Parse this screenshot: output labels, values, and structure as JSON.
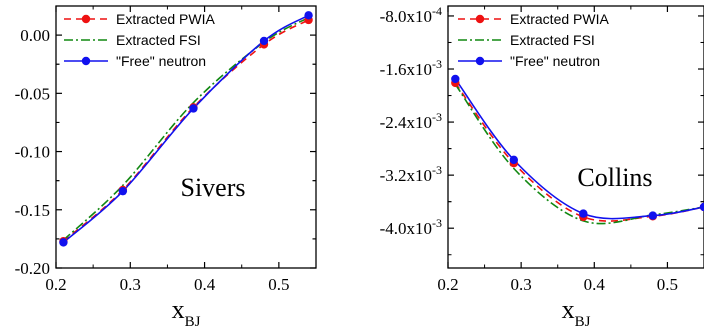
{
  "chart_data": [
    {
      "type": "line",
      "annotation": "Sivers",
      "xlabel_main": "x",
      "xlabel_sub": "BJ",
      "xlim": [
        0.2,
        0.55
      ],
      "ylim": [
        -0.2,
        0.025
      ],
      "xticks": [
        {
          "value": 0.2,
          "label": "0.2"
        },
        {
          "value": 0.3,
          "label": "0.3"
        },
        {
          "value": 0.4,
          "label": "0.4"
        },
        {
          "value": 0.5,
          "label": "0.5"
        }
      ],
      "yticks": [
        {
          "value": 0.0,
          "label": "0.00"
        },
        {
          "value": -0.05,
          "label": "-0.05"
        },
        {
          "value": -0.1,
          "label": "-0.10"
        },
        {
          "value": -0.15,
          "label": "-0.15"
        },
        {
          "value": -0.2,
          "label": "-0.20"
        }
      ],
      "grid": false,
      "legend_position": "top-left",
      "series": [
        {
          "name": "Extracted PWIA",
          "style": "dashed",
          "color": "#ee1111",
          "marker": "circle",
          "x": [
            0.21,
            0.29,
            0.385,
            0.48,
            0.54
          ],
          "y": [
            -0.177,
            -0.133,
            -0.062,
            -0.008,
            0.013
          ]
        },
        {
          "name": "Extracted FSI",
          "style": "dashdot",
          "color": "#118811",
          "marker": "none",
          "x": [
            0.21,
            0.29,
            0.385,
            0.48,
            0.54
          ],
          "y": [
            -0.176,
            -0.129,
            -0.058,
            -0.006,
            0.015
          ]
        },
        {
          "name": "\"Free\" neutron",
          "style": "solid",
          "color": "#1111ee",
          "marker": "circle",
          "x": [
            0.21,
            0.29,
            0.385,
            0.48,
            0.54
          ],
          "y": [
            -0.178,
            -0.134,
            -0.063,
            -0.005,
            0.017
          ]
        }
      ]
    },
    {
      "type": "line",
      "annotation": "Collins",
      "xlabel_main": "x",
      "xlabel_sub": "BJ",
      "xlim": [
        0.2,
        0.55
      ],
      "ylim": [
        -0.0046,
        -0.00065
      ],
      "xticks": [
        {
          "value": 0.2,
          "label": "0.2"
        },
        {
          "value": 0.3,
          "label": "0.3"
        },
        {
          "value": 0.4,
          "label": "0.4"
        },
        {
          "value": 0.5,
          "label": "0.5"
        }
      ],
      "yticks": [
        {
          "value": -0.0008,
          "mant": "-8.0x10",
          "exp": "-4"
        },
        {
          "value": -0.0016,
          "mant": "-1.6x10",
          "exp": "-3"
        },
        {
          "value": -0.0024,
          "mant": "-2.4x10",
          "exp": "-3"
        },
        {
          "value": -0.0032,
          "mant": "-3.2x10",
          "exp": "-3"
        },
        {
          "value": -0.004,
          "mant": "-4.0x10",
          "exp": "-3"
        }
      ],
      "grid": false,
      "legend_position": "top-left",
      "series": [
        {
          "name": "Extracted PWIA",
          "style": "dashed",
          "color": "#ee1111",
          "marker": "circle",
          "x": [
            0.21,
            0.29,
            0.385,
            0.48,
            0.55
          ],
          "y": [
            -0.00181,
            -0.00302,
            -0.00383,
            -0.00382,
            -0.00368
          ]
        },
        {
          "name": "Extracted FSI",
          "style": "dashdot",
          "color": "#118811",
          "marker": "none",
          "x": [
            0.21,
            0.29,
            0.385,
            0.48,
            0.55
          ],
          "y": [
            -0.00183,
            -0.0031,
            -0.00389,
            -0.0038,
            -0.00368
          ]
        },
        {
          "name": "\"Free\" neutron",
          "style": "solid",
          "color": "#1111ee",
          "marker": "circle",
          "x": [
            0.21,
            0.29,
            0.385,
            0.48,
            0.55
          ],
          "y": [
            -0.00175,
            -0.00297,
            -0.00378,
            -0.00381,
            -0.00368
          ]
        }
      ]
    }
  ]
}
